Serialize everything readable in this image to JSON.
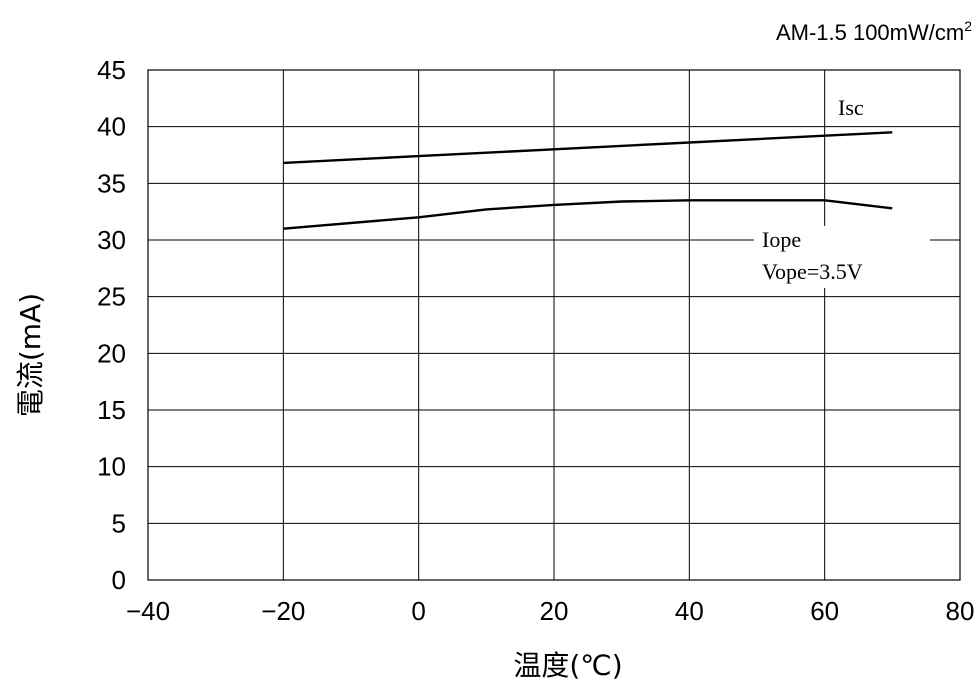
{
  "chart_data": {
    "type": "line",
    "condition": "AM-1.5 100mW/cm",
    "condition_sup": "2",
    "xlabel": "温度(℃)",
    "ylabel": "電流(mA)",
    "xlim": [
      -40,
      80
    ],
    "ylim": [
      0,
      45
    ],
    "xticks": [
      -40,
      -20,
      0,
      20,
      40,
      60,
      80
    ],
    "yticks": [
      0,
      5,
      10,
      15,
      20,
      25,
      30,
      35,
      40,
      45
    ],
    "grid": true,
    "series": [
      {
        "name": "Isc",
        "x": [
          -20,
          0,
          20,
          40,
          60,
          70
        ],
        "y": [
          36.8,
          37.4,
          38.0,
          38.6,
          39.2,
          39.5
        ]
      },
      {
        "name": "Iope",
        "name_line2": "Vope=3.5V",
        "x": [
          -20,
          0,
          10,
          20,
          30,
          40,
          50,
          60,
          70
        ],
        "y": [
          31.0,
          32.0,
          32.7,
          33.1,
          33.4,
          33.5,
          33.5,
          33.5,
          32.8
        ]
      }
    ]
  }
}
